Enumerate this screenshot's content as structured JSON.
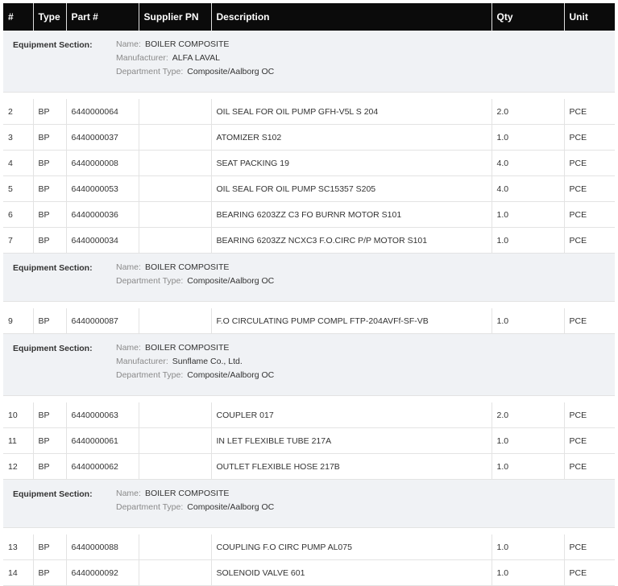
{
  "columns": [
    "#",
    "Type",
    "Part #",
    "Supplier PN",
    "Description",
    "Qty",
    "Unit"
  ],
  "section_label": "Equipment Section:",
  "keys": {
    "name": "Name:",
    "manufacturer": "Manufacturer:",
    "dept": "Department Type:"
  },
  "groups": [
    {
      "section": {
        "name": "BOILER COMPOSITE",
        "manufacturer": "ALFA LAVAL",
        "dept": "Composite/Aalborg OC"
      },
      "rows": [
        {
          "num": "2",
          "type": "BP",
          "part": "6440000064",
          "supplier": "",
          "desc": "OIL SEAL FOR OIL PUMP GFH-V5L S 204",
          "qty": "2.0",
          "unit": "PCE"
        },
        {
          "num": "3",
          "type": "BP",
          "part": "6440000037",
          "supplier": "",
          "desc": "ATOMIZER S102",
          "qty": "1.0",
          "unit": "PCE"
        },
        {
          "num": "4",
          "type": "BP",
          "part": "6440000008",
          "supplier": "",
          "desc": "SEAT PACKING 19",
          "qty": "4.0",
          "unit": "PCE"
        },
        {
          "num": "5",
          "type": "BP",
          "part": "6440000053",
          "supplier": "",
          "desc": "OIL SEAL FOR OIL PUMP SC15357 S205",
          "qty": "4.0",
          "unit": "PCE"
        },
        {
          "num": "6",
          "type": "BP",
          "part": "6440000036",
          "supplier": "",
          "desc": "BEARING 6203ZZ C3 FO BURNR MOTOR S101",
          "qty": "1.0",
          "unit": "PCE"
        },
        {
          "num": "7",
          "type": "BP",
          "part": "6440000034",
          "supplier": "",
          "desc": "BEARING 6203ZZ NCXC3 F.O.CIRC P/P MOTOR S101",
          "qty": "1.0",
          "unit": "PCE"
        }
      ]
    },
    {
      "section": {
        "name": "BOILER COMPOSITE",
        "dept": "Composite/Aalborg OC"
      },
      "rows": [
        {
          "num": "9",
          "type": "BP",
          "part": "6440000087",
          "supplier": "",
          "desc": "F.O CIRCULATING PUMP COMPL FTP-204AVFf-SF-VB",
          "qty": "1.0",
          "unit": "PCE"
        }
      ]
    },
    {
      "section": {
        "name": "BOILER COMPOSITE",
        "manufacturer": "Sunflame Co., Ltd.",
        "dept": "Composite/Aalborg OC"
      },
      "rows": [
        {
          "num": "10",
          "type": "BP",
          "part": "6440000063",
          "supplier": "",
          "desc": "COUPLER 017",
          "qty": "2.0",
          "unit": "PCE"
        },
        {
          "num": "11",
          "type": "BP",
          "part": "6440000061",
          "supplier": "",
          "desc": "IN LET FLEXIBLE TUBE 217A",
          "qty": "1.0",
          "unit": "PCE"
        },
        {
          "num": "12",
          "type": "BP",
          "part": "6440000062",
          "supplier": "",
          "desc": "OUTLET FLEXIBLE HOSE 217B",
          "qty": "1.0",
          "unit": "PCE"
        }
      ]
    },
    {
      "section": {
        "name": "BOILER COMPOSITE",
        "dept": "Composite/Aalborg OC"
      },
      "rows": [
        {
          "num": "13",
          "type": "BP",
          "part": "6440000088",
          "supplier": "",
          "desc": "COUPLING F.O CIRC PUMP AL075",
          "qty": "1.0",
          "unit": "PCE"
        },
        {
          "num": "14",
          "type": "BP",
          "part": "6440000092",
          "supplier": "",
          "desc": "SOLENOID VALVE 601",
          "qty": "1.0",
          "unit": "PCE"
        }
      ]
    }
  ]
}
